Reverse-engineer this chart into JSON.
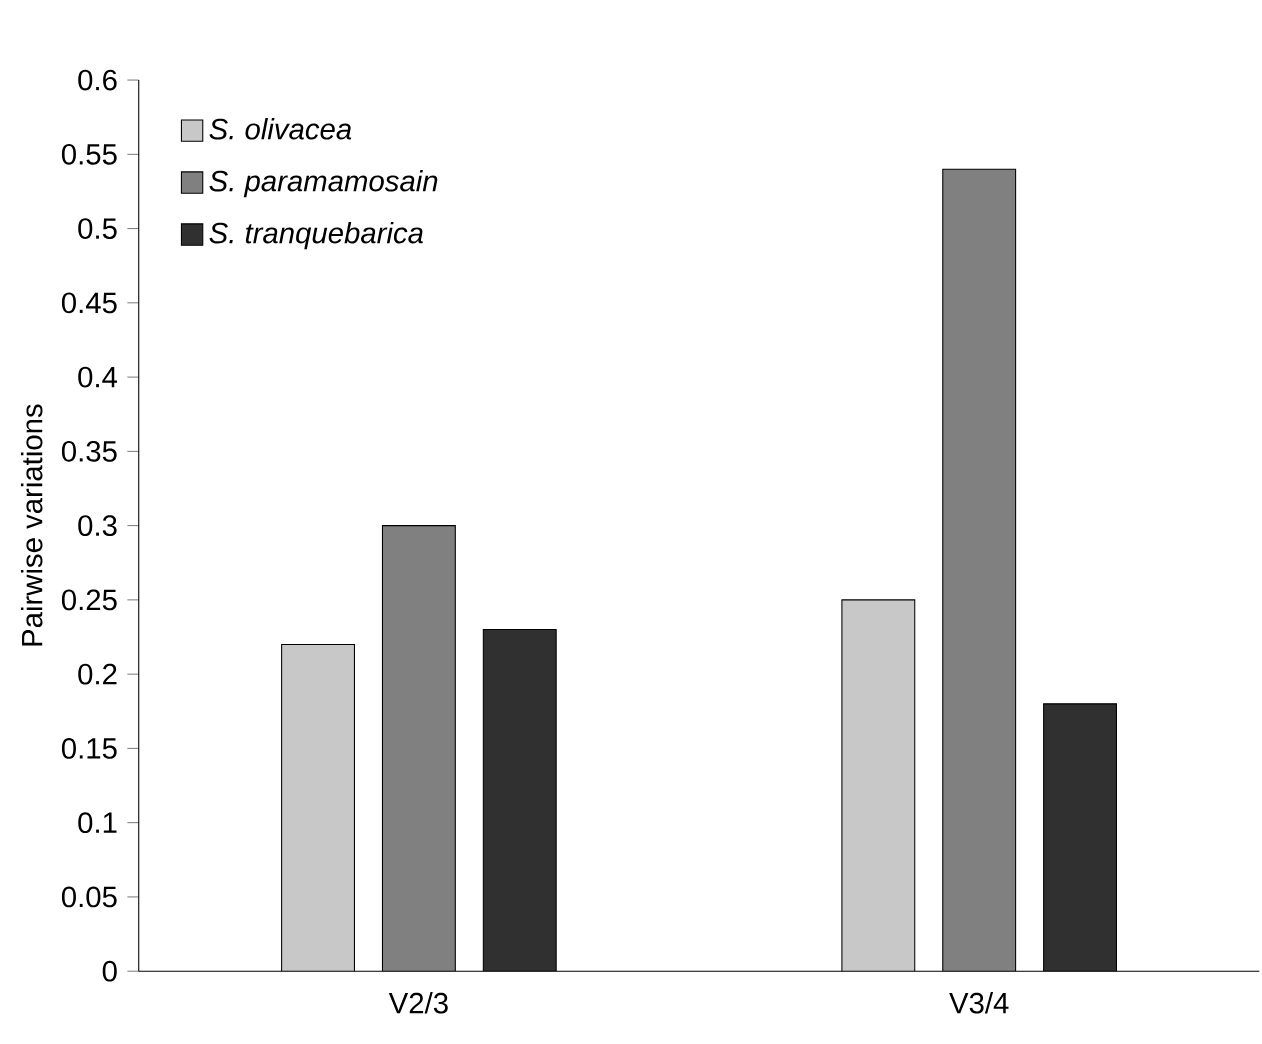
{
  "chart_data": {
    "type": "bar",
    "ylabel": "Pairwise variations",
    "categories": [
      "V2/3",
      "V3/4"
    ],
    "series": [
      {
        "name": "S. olivacea",
        "color": "#c8c8c8",
        "values": [
          0.22,
          0.25
        ]
      },
      {
        "name": "S. paramamosain",
        "color": "#808080",
        "values": [
          0.3,
          0.54
        ]
      },
      {
        "name": "S. tranquebarica",
        "color": "#303030",
        "values": [
          0.23,
          0.18
        ]
      }
    ],
    "ylim": [
      0,
      0.6
    ],
    "yticks": [
      0,
      0.05,
      0.1,
      0.15,
      0.2,
      0.25,
      0.3,
      0.35,
      0.4,
      0.45,
      0.5,
      0.55,
      0.6
    ],
    "legend": "top left"
  }
}
